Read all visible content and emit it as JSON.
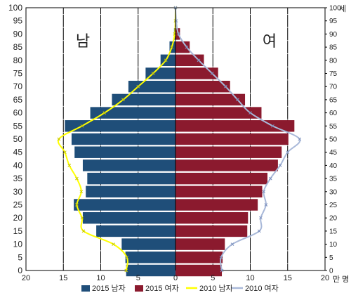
{
  "chart_data": {
    "type": "bar",
    "orientation": "horizontal-population-pyramid",
    "categories": [
      "0",
      "5",
      "10",
      "15",
      "20",
      "25",
      "30",
      "35",
      "40",
      "45",
      "50",
      "55",
      "60",
      "65",
      "70",
      "75",
      "80",
      "85",
      "90",
      "95",
      "100"
    ],
    "series": [
      {
        "name": "2015 남자",
        "kind": "bar",
        "side": "left",
        "color": "#1f4e79",
        "values": [
          6.6,
          6.7,
          7.2,
          10.6,
          12.4,
          13.6,
          12.0,
          11.8,
          12.4,
          13.5,
          13.9,
          14.8,
          11.4,
          8.5,
          6.3,
          4.0,
          2.0,
          0.8,
          0.2,
          0.05,
          0.0
        ]
      },
      {
        "name": "2015 여자",
        "kind": "bar",
        "side": "right",
        "color": "#8b1a2e",
        "values": [
          6.2,
          6.3,
          6.6,
          9.6,
          9.7,
          11.0,
          11.6,
          12.3,
          13.7,
          14.2,
          15.1,
          15.9,
          11.5,
          9.3,
          7.3,
          5.7,
          3.8,
          1.9,
          0.6,
          0.1,
          0.0
        ]
      },
      {
        "name": "2010 남자",
        "kind": "line",
        "side": "left",
        "color": "#ffff00",
        "points": [
          [
            0,
            6.6
          ],
          [
            5,
            6.5
          ],
          [
            10,
            8.3
          ],
          [
            15,
            12.3
          ],
          [
            20,
            12.5
          ],
          [
            25,
            13.2
          ],
          [
            30,
            12.6
          ],
          [
            35,
            13.2
          ],
          [
            40,
            14.2
          ],
          [
            45,
            14.8
          ],
          [
            50,
            15.6
          ],
          [
            55,
            12.5
          ],
          [
            60,
            9.5
          ],
          [
            65,
            7.0
          ],
          [
            70,
            5.0
          ],
          [
            75,
            3.0
          ],
          [
            80,
            1.3
          ],
          [
            85,
            0.5
          ],
          [
            90,
            0.1
          ],
          [
            95,
            0.02
          ],
          [
            100,
            0.0
          ]
        ]
      },
      {
        "name": "2010 여자",
        "kind": "line",
        "side": "right",
        "color": "#a9b9d9",
        "points": [
          [
            0,
            6.2
          ],
          [
            5,
            6.1
          ],
          [
            10,
            7.6
          ],
          [
            15,
            11.2
          ],
          [
            20,
            11.4
          ],
          [
            25,
            12.1
          ],
          [
            30,
            11.8
          ],
          [
            35,
            12.7
          ],
          [
            40,
            14.0
          ],
          [
            45,
            15.0
          ],
          [
            50,
            16.6
          ],
          [
            55,
            13.0
          ],
          [
            60,
            10.0
          ],
          [
            65,
            8.3
          ],
          [
            70,
            6.7
          ],
          [
            75,
            4.9
          ],
          [
            80,
            3.1
          ],
          [
            85,
            1.5
          ],
          [
            90,
            0.4
          ],
          [
            95,
            0.1
          ],
          [
            100,
            0.0
          ]
        ]
      }
    ],
    "xlim": [
      -20,
      20
    ],
    "xticks": [
      "20",
      "15",
      "10",
      "5",
      "0",
      "5",
      "10",
      "15",
      "20"
    ],
    "x_unit_label": "만 명",
    "ylim": [
      0,
      100
    ],
    "yticks": [
      "0",
      "5",
      "10",
      "15",
      "20",
      "25",
      "30",
      "35",
      "40",
      "45",
      "50",
      "55",
      "60",
      "65",
      "70",
      "75",
      "80",
      "85",
      "90",
      "95",
      "100"
    ],
    "y_unit_label": "세",
    "annotations": {
      "left": "남",
      "right": "여"
    },
    "grid": "vertical",
    "legend_position": "bottom"
  }
}
